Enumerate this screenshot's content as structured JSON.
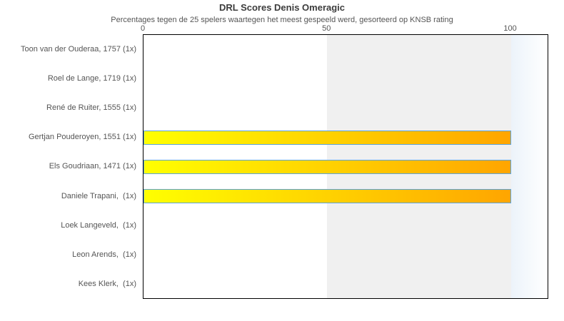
{
  "title": "DRL Scores Denis Omeragic",
  "subtitle": "Percentages tegen de 25 spelers waartegen het meest gespeeld werd, gesorteerd op KNSB rating",
  "chart_data": {
    "type": "bar",
    "orientation": "horizontal",
    "title": "DRL Scores Denis Omeragic",
    "subtitle": "Percentages tegen de 25 spelers waartegen het meest gespeeld werd, gesorteerd op KNSB rating",
    "categories": [
      "Toon van der Ouderaa, 1757 (1x)",
      "Roel de Lange, 1719 (1x)",
      "René de Ruiter, 1555 (1x)",
      "Gertjan Pouderoyen, 1551 (1x)",
      "Els Goudriaan, 1471 (1x)",
      "Daniele Trapani,  (1x)",
      "Loek Langeveld,  (1x)",
      "Leon Arends,  (1x)",
      "Kees Klerk,  (1x)"
    ],
    "values": [
      0,
      0,
      0,
      100,
      100,
      100,
      0,
      0,
      0
    ],
    "xlabel": "",
    "ylabel": "",
    "xlim": [
      0,
      110
    ],
    "x_ticks": [
      0,
      50,
      100
    ],
    "grid": false,
    "legend": "none",
    "plot_bands": [
      {
        "from": 0,
        "to": 50,
        "style": "white"
      },
      {
        "from": 50,
        "to": 100,
        "style": "gray"
      },
      {
        "from": 100,
        "to": 110,
        "style": "fade"
      }
    ],
    "colors": {
      "bar_gradient_start": "#ffff00",
      "bar_gradient_end": "#ffa500",
      "bar_border": "#5ba3de",
      "band_gray": "#f0f0f0",
      "plot_border": "#000000",
      "title_color": "#3c3c3c",
      "label_color": "#555555"
    }
  }
}
